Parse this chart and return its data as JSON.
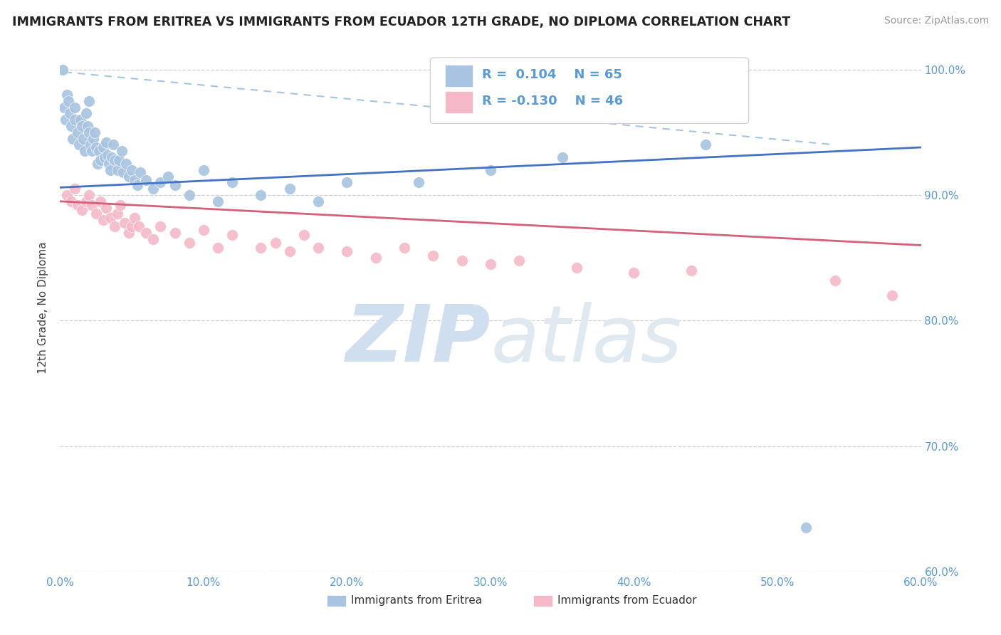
{
  "title": "IMMIGRANTS FROM ERITREA VS IMMIGRANTS FROM ECUADOR 12TH GRADE, NO DIPLOMA CORRELATION CHART",
  "source": "Source: ZipAtlas.com",
  "ylabel": "12th Grade, No Diploma",
  "eritrea_color": "#a8c4e0",
  "ecuador_color": "#f4b8c8",
  "eritrea_line_color": "#4472c4",
  "ecuador_line_color": "#d4607a",
  "dashed_line_color": "#a8c4e0",
  "watermark_color": "#d0dff0",
  "legend_eritrea_R": "0.104",
  "legend_eritrea_N": "65",
  "legend_ecuador_R": "-0.130",
  "legend_ecuador_N": "46",
  "legend_label_eritrea": "Immigrants from Eritrea",
  "legend_label_ecuador": "Immigrants from Ecuador",
  "xlim": [
    0.0,
    0.6
  ],
  "ylim": [
    0.6,
    1.02
  ],
  "xticks": [
    0.0,
    0.1,
    0.2,
    0.3,
    0.4,
    0.5,
    0.6
  ],
  "yticks": [
    0.6,
    0.7,
    0.8,
    0.9,
    1.0
  ],
  "xticklabels": [
    "0.0%",
    "10.0%",
    "20.0%",
    "30.0%",
    "40.0%",
    "50.0%",
    "60.0%"
  ],
  "yticklabels": [
    "60.0%",
    "70.0%",
    "80.0%",
    "90.0%",
    "100.0%"
  ],
  "tick_color": "#5b9bd5",
  "grid_color": "#d0d0d8",
  "background_color": "#ffffff",
  "eritrea_x": [
    0.002,
    0.003,
    0.004,
    0.005,
    0.006,
    0.007,
    0.008,
    0.009,
    0.01,
    0.01,
    0.012,
    0.013,
    0.014,
    0.015,
    0.016,
    0.017,
    0.018,
    0.019,
    0.02,
    0.02,
    0.021,
    0.022,
    0.023,
    0.024,
    0.025,
    0.026,
    0.027,
    0.028,
    0.03,
    0.031,
    0.032,
    0.033,
    0.034,
    0.035,
    0.036,
    0.037,
    0.038,
    0.04,
    0.041,
    0.043,
    0.044,
    0.046,
    0.048,
    0.05,
    0.052,
    0.054,
    0.056,
    0.06,
    0.065,
    0.07,
    0.075,
    0.08,
    0.09,
    0.1,
    0.11,
    0.12,
    0.14,
    0.16,
    0.18,
    0.2,
    0.25,
    0.3,
    0.35,
    0.45,
    0.52
  ],
  "eritrea_y": [
    1.0,
    0.97,
    0.96,
    0.98,
    0.975,
    0.965,
    0.955,
    0.945,
    0.96,
    0.97,
    0.95,
    0.94,
    0.96,
    0.955,
    0.945,
    0.935,
    0.965,
    0.955,
    0.95,
    0.975,
    0.94,
    0.935,
    0.945,
    0.95,
    0.938,
    0.925,
    0.935,
    0.928,
    0.938,
    0.93,
    0.942,
    0.932,
    0.925,
    0.92,
    0.93,
    0.94,
    0.928,
    0.92,
    0.928,
    0.935,
    0.918,
    0.925,
    0.915,
    0.92,
    0.912,
    0.908,
    0.918,
    0.912,
    0.905,
    0.91,
    0.915,
    0.908,
    0.9,
    0.92,
    0.895,
    0.91,
    0.9,
    0.905,
    0.895,
    0.91,
    0.91,
    0.92,
    0.93,
    0.94,
    0.635
  ],
  "ecuador_x": [
    0.005,
    0.008,
    0.01,
    0.012,
    0.015,
    0.018,
    0.02,
    0.022,
    0.025,
    0.028,
    0.03,
    0.032,
    0.035,
    0.038,
    0.04,
    0.042,
    0.045,
    0.048,
    0.05,
    0.052,
    0.055,
    0.06,
    0.065,
    0.07,
    0.08,
    0.09,
    0.1,
    0.11,
    0.12,
    0.14,
    0.15,
    0.16,
    0.17,
    0.18,
    0.2,
    0.22,
    0.24,
    0.26,
    0.28,
    0.3,
    0.32,
    0.36,
    0.4,
    0.44,
    0.54,
    0.58
  ],
  "ecuador_y": [
    0.9,
    0.895,
    0.905,
    0.892,
    0.888,
    0.895,
    0.9,
    0.892,
    0.885,
    0.895,
    0.88,
    0.89,
    0.882,
    0.875,
    0.885,
    0.892,
    0.878,
    0.87,
    0.875,
    0.882,
    0.875,
    0.87,
    0.865,
    0.875,
    0.87,
    0.862,
    0.872,
    0.858,
    0.868,
    0.858,
    0.862,
    0.855,
    0.868,
    0.858,
    0.855,
    0.85,
    0.858,
    0.852,
    0.848,
    0.845,
    0.848,
    0.842,
    0.838,
    0.84,
    0.832,
    0.82
  ],
  "eritrea_line_x": [
    0.0,
    0.6
  ],
  "eritrea_line_y": [
    0.906,
    0.938
  ],
  "ecuador_line_x": [
    0.0,
    0.6
  ],
  "ecuador_line_y": [
    0.895,
    0.86
  ],
  "dashed_line_x": [
    0.003,
    0.54
  ],
  "dashed_line_y": [
    0.998,
    0.94
  ]
}
